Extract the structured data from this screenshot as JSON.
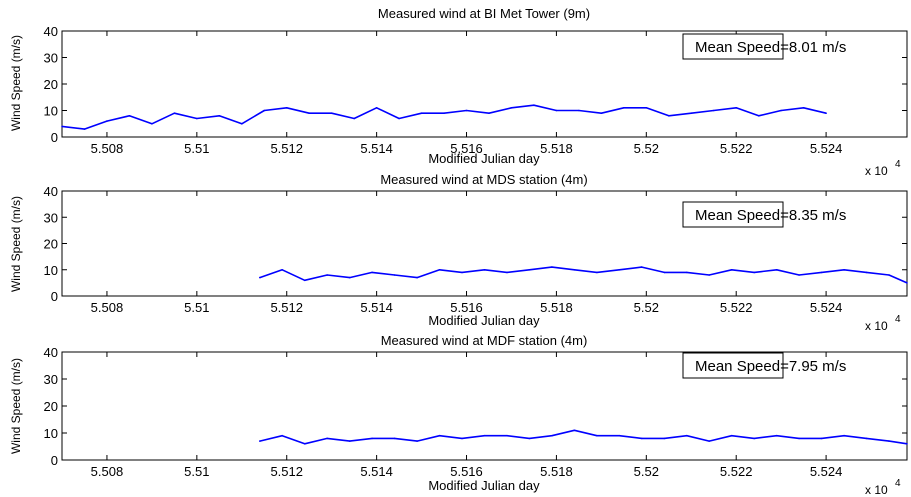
{
  "chart_data": [
    {
      "type": "line",
      "title": "Measured wind at BI Met Tower (9m)",
      "xlabel": "Modified Julian day",
      "ylabel": "Wind Speed (m/s)",
      "xlim": [
        55070,
        55258
      ],
      "ylim": [
        0,
        40
      ],
      "xticks": [
        55080,
        55100,
        55120,
        55140,
        55160,
        55180,
        55200,
        55220,
        55240
      ],
      "xtick_labels": [
        "5.508",
        "5.51",
        "5.512",
        "5.514",
        "5.516",
        "5.518",
        "5.52",
        "5.522",
        "5.524"
      ],
      "yticks": [
        0,
        10,
        20,
        30,
        40
      ],
      "x_multiplier": "x 10",
      "x_exponent": "4",
      "annotation": "Mean Speed=8.01 m/s",
      "color": "#0000ff",
      "series": [
        {
          "x": [
            55070,
            55075,
            55080,
            55085,
            55090,
            55095,
            55100,
            55105,
            55110,
            55115,
            55120,
            55125,
            55130,
            55135,
            55140,
            55145,
            55150,
            55155,
            55160,
            55165,
            55170,
            55175,
            55180,
            55185,
            55190,
            55195,
            55200,
            55205,
            55210,
            55215,
            55220,
            55225,
            55230,
            55235,
            55240
          ],
          "y": [
            4,
            3,
            6,
            8,
            5,
            9,
            7,
            8,
            5,
            10,
            11,
            9,
            9,
            7,
            11,
            7,
            9,
            9,
            10,
            9,
            11,
            12,
            10,
            10,
            9,
            11,
            11,
            8,
            9,
            10,
            11,
            8,
            10,
            11,
            9
          ]
        }
      ]
    },
    {
      "type": "line",
      "title": "Measured wind at MDS station (4m)",
      "xlabel": "Modified Julian day",
      "ylabel": "Wind Speed (m/s)",
      "xlim": [
        55070,
        55258
      ],
      "ylim": [
        0,
        40
      ],
      "xticks": [
        55080,
        55100,
        55120,
        55140,
        55160,
        55180,
        55200,
        55220,
        55240
      ],
      "xtick_labels": [
        "5.508",
        "5.51",
        "5.512",
        "5.514",
        "5.516",
        "5.518",
        "5.52",
        "5.522",
        "5.524"
      ],
      "yticks": [
        0,
        10,
        20,
        30,
        40
      ],
      "x_multiplier": "x 10",
      "x_exponent": "4",
      "annotation": "Mean Speed=8.35 m/s",
      "color": "#0000ff",
      "series": [
        {
          "x": [
            55114,
            55119,
            55124,
            55129,
            55134,
            55139,
            55144,
            55149,
            55154,
            55159,
            55164,
            55169,
            55174,
            55179,
            55184,
            55189,
            55194,
            55199,
            55204,
            55209,
            55214,
            55219,
            55224,
            55229,
            55234,
            55239,
            55244,
            55249,
            55254,
            55258
          ],
          "y": [
            7,
            10,
            6,
            8,
            7,
            9,
            8,
            7,
            10,
            9,
            10,
            9,
            10,
            11,
            10,
            9,
            10,
            11,
            9,
            9,
            8,
            10,
            9,
            10,
            8,
            9,
            10,
            9,
            8,
            5
          ]
        }
      ]
    },
    {
      "type": "line",
      "title": "Measured wind at MDF station (4m)",
      "xlabel": "Modified Julian day",
      "ylabel": "Wind Speed (m/s)",
      "xlim": [
        55070,
        55258
      ],
      "ylim": [
        0,
        40
      ],
      "xticks": [
        55080,
        55100,
        55120,
        55140,
        55160,
        55180,
        55200,
        55220,
        55240
      ],
      "xtick_labels": [
        "5.508",
        "5.51",
        "5.512",
        "5.514",
        "5.516",
        "5.518",
        "5.52",
        "5.522",
        "5.524"
      ],
      "yticks": [
        0,
        10,
        20,
        30,
        40
      ],
      "x_multiplier": "x 10",
      "x_exponent": "4",
      "annotation": "Mean Speed=7.95 m/s",
      "color": "#0000ff",
      "series": [
        {
          "x": [
            55114,
            55119,
            55124,
            55129,
            55134,
            55139,
            55144,
            55149,
            55154,
            55159,
            55164,
            55169,
            55174,
            55179,
            55184,
            55189,
            55194,
            55199,
            55204,
            55209,
            55214,
            55219,
            55224,
            55229,
            55234,
            55239,
            55244,
            55249,
            55254,
            55258
          ],
          "y": [
            7,
            9,
            6,
            8,
            7,
            8,
            8,
            7,
            9,
            8,
            9,
            9,
            8,
            9,
            11,
            9,
            9,
            8,
            8,
            9,
            7,
            9,
            8,
            9,
            8,
            8,
            9,
            8,
            7,
            6
          ]
        }
      ]
    }
  ]
}
